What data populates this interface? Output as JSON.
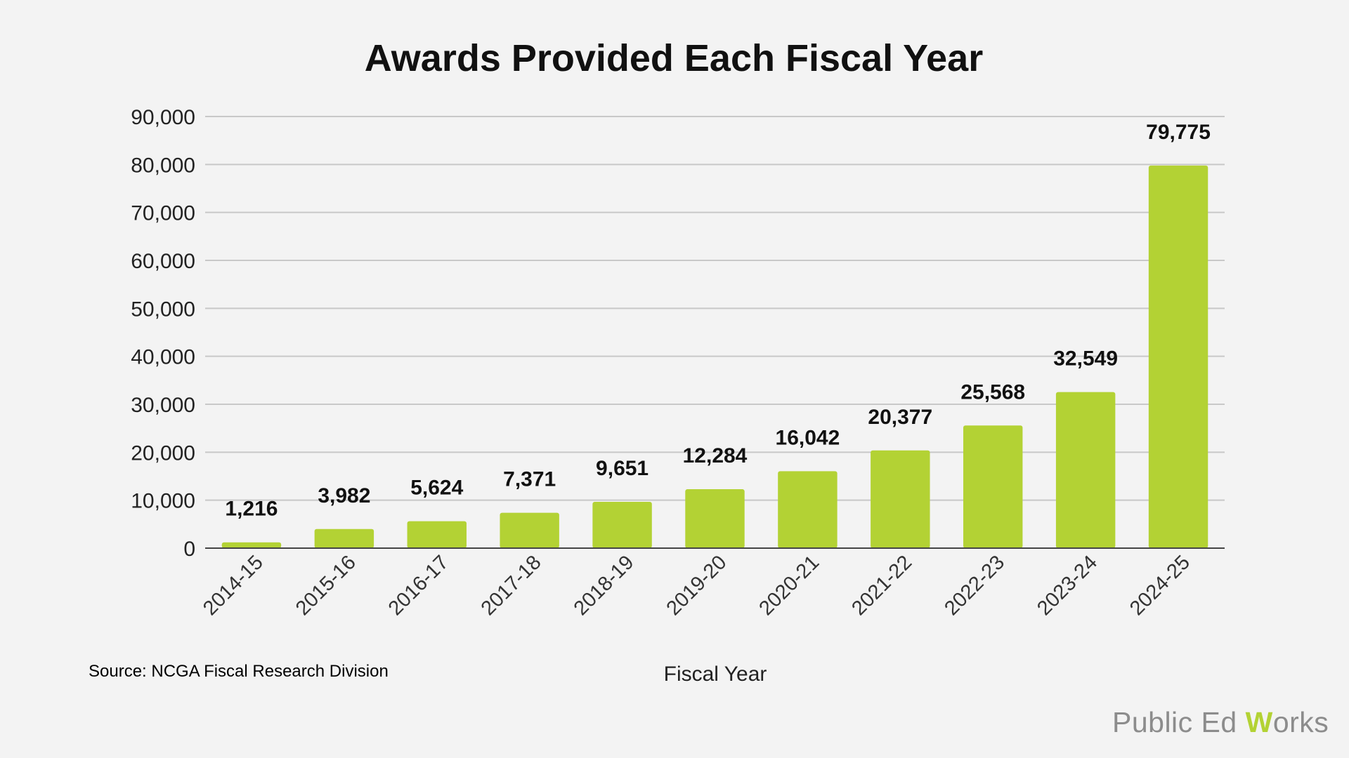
{
  "chart_data": {
    "type": "bar",
    "title": "Awards Provided Each Fiscal Year",
    "xlabel": "Fiscal Year",
    "ylabel": "",
    "categories": [
      "2014-15",
      "2015-16",
      "2016-17",
      "2017-18",
      "2018-19",
      "2019-20",
      "2020-21",
      "2021-22",
      "2022-23",
      "2023-24",
      "2024-25"
    ],
    "values": [
      1216,
      3982,
      5624,
      7371,
      9651,
      12284,
      16042,
      20377,
      25568,
      32549,
      79775
    ],
    "value_labels": [
      "1,216",
      "3,982",
      "5,624",
      "7,371",
      "9,651",
      "12,284",
      "16,042",
      "20,377",
      "25,568",
      "32,549",
      "79,775"
    ],
    "ylim": [
      0,
      90000
    ],
    "yticks": [
      0,
      10000,
      20000,
      30000,
      40000,
      50000,
      60000,
      70000,
      80000,
      90000
    ],
    "ytick_labels": [
      "0",
      "10,000",
      "20,000",
      "30,000",
      "40,000",
      "50,000",
      "60,000",
      "70,000",
      "80,000",
      "90,000"
    ],
    "grid": true,
    "legend": "none",
    "bar_color": "#b3d234"
  },
  "source_note": "Source: NCGA Fiscal Research Division",
  "brand": {
    "prefix": "Public Ed ",
    "w": "W",
    "suffix": "orks",
    "accent": "#b3d234"
  }
}
